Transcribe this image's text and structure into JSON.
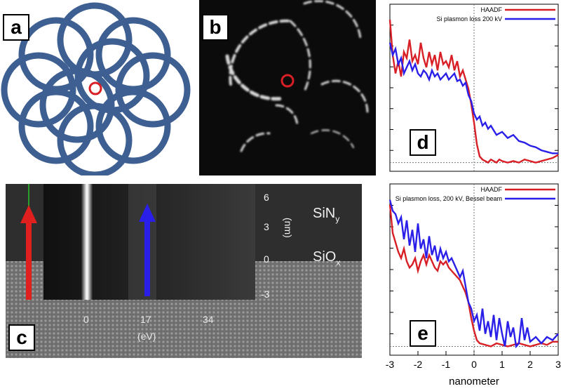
{
  "figure": {
    "panels": [
      {
        "id": "a",
        "label": "a"
      },
      {
        "id": "b",
        "label": "b"
      },
      {
        "id": "c",
        "label": "c"
      },
      {
        "id": "d",
        "label": "d"
      },
      {
        "id": "e",
        "label": "e"
      }
    ],
    "panel_c": {
      "layer_top": "SiN",
      "layer_top_sub": "y",
      "layer_bottom": "SiO",
      "layer_bottom_sub": "x",
      "x_ticks": [
        "0",
        "17",
        "34"
      ],
      "x_unit": "(eV)",
      "y_ticks": [
        "6",
        "3",
        "0",
        "-3"
      ],
      "y_unit": "(nm)",
      "arrow_colors": {
        "red": "#e0201f",
        "blue": "#2a1fe8"
      }
    },
    "colors": {
      "ring_blue": "#3e5f91",
      "marker_red": "#d81f26"
    }
  },
  "chart_data": [
    {
      "type": "line",
      "panel": "d",
      "xlim": [
        -3,
        3
      ],
      "grid": false,
      "legend_position": "top-right",
      "series": [
        {
          "name": "HAADF",
          "color": "#d81f26",
          "x": [
            -3,
            -2.9,
            -2.8,
            -2.7,
            -2.6,
            -2.5,
            -2.4,
            -2.3,
            -2.2,
            -2.1,
            -2.0,
            -1.9,
            -1.8,
            -1.7,
            -1.6,
            -1.5,
            -1.4,
            -1.3,
            -1.2,
            -1.1,
            -1.0,
            -0.9,
            -0.8,
            -0.7,
            -0.6,
            -0.5,
            -0.4,
            -0.3,
            -0.2,
            -0.1,
            0,
            0.1,
            0.2,
            0.3,
            0.4,
            0.5,
            0.6,
            0.7,
            0.8,
            0.9,
            1.0,
            1.2,
            1.4,
            1.6,
            1.8,
            2.0,
            2.2,
            2.4,
            2.6,
            2.8,
            3.0
          ],
          "y": [
            0.95,
            0.72,
            0.6,
            0.68,
            0.58,
            0.74,
            0.7,
            0.82,
            0.68,
            0.72,
            0.66,
            0.8,
            0.7,
            0.64,
            0.74,
            0.66,
            0.72,
            0.62,
            0.74,
            0.66,
            0.68,
            0.64,
            0.72,
            0.62,
            0.68,
            0.58,
            0.62,
            0.56,
            0.5,
            0.4,
            0.28,
            0.14,
            0.06,
            0.04,
            0.03,
            0.02,
            0.04,
            0.03,
            0.02,
            0.04,
            0.03,
            0.02,
            0.03,
            0.02,
            0.04,
            0.03,
            0.02,
            0.03,
            0.04,
            0.05,
            0.07
          ]
        },
        {
          "name": "Si plasmon loss 200 kV",
          "color": "#2a1fe8",
          "x": [
            -3,
            -2.9,
            -2.8,
            -2.7,
            -2.6,
            -2.5,
            -2.4,
            -2.3,
            -2.2,
            -2.1,
            -2.0,
            -1.9,
            -1.8,
            -1.7,
            -1.6,
            -1.5,
            -1.4,
            -1.3,
            -1.2,
            -1.1,
            -1.0,
            -0.9,
            -0.8,
            -0.7,
            -0.6,
            -0.5,
            -0.4,
            -0.3,
            -0.2,
            -0.1,
            0,
            0.1,
            0.2,
            0.3,
            0.4,
            0.5,
            0.6,
            0.8,
            1.0,
            1.2,
            1.4,
            1.6,
            1.8,
            2.0,
            2.2,
            2.4,
            2.6,
            2.8,
            3.0
          ],
          "y": [
            0.8,
            0.72,
            0.76,
            0.66,
            0.7,
            0.6,
            0.64,
            0.68,
            0.62,
            0.66,
            0.6,
            0.58,
            0.62,
            0.6,
            0.56,
            0.62,
            0.58,
            0.6,
            0.56,
            0.58,
            0.6,
            0.56,
            0.58,
            0.6,
            0.55,
            0.56,
            0.52,
            0.54,
            0.46,
            0.42,
            0.34,
            0.3,
            0.32,
            0.26,
            0.28,
            0.24,
            0.26,
            0.2,
            0.22,
            0.18,
            0.2,
            0.16,
            0.15,
            0.13,
            0.12,
            0.1,
            0.09,
            0.08,
            0.08
          ]
        }
      ]
    },
    {
      "type": "line",
      "panel": "e",
      "xlim": [
        -3,
        3
      ],
      "grid": false,
      "legend_position": "top-right",
      "xlabel": "nanometer",
      "x_ticks": [
        "-3",
        "-2",
        "-1",
        "0",
        "1",
        "2",
        "3"
      ],
      "series": [
        {
          "name": "HAADF",
          "color": "#d81f26",
          "x": [
            -3,
            -2.9,
            -2.8,
            -2.7,
            -2.6,
            -2.5,
            -2.4,
            -2.3,
            -2.2,
            -2.1,
            -2.0,
            -1.9,
            -1.8,
            -1.7,
            -1.6,
            -1.5,
            -1.4,
            -1.3,
            -1.2,
            -1.1,
            -1.0,
            -0.9,
            -0.8,
            -0.7,
            -0.6,
            -0.5,
            -0.4,
            -0.3,
            -0.2,
            -0.1,
            0,
            0.1,
            0.2,
            0.4,
            0.6,
            0.8,
            1.0,
            1.2,
            1.4,
            1.6,
            1.8,
            2.0,
            2.2,
            2.4,
            2.6,
            2.8,
            3.0
          ],
          "y": [
            0.92,
            0.74,
            0.68,
            0.62,
            0.58,
            0.64,
            0.56,
            0.52,
            0.54,
            0.58,
            0.5,
            0.56,
            0.6,
            0.54,
            0.6,
            0.56,
            0.52,
            0.5,
            0.56,
            0.54,
            0.56,
            0.52,
            0.5,
            0.48,
            0.46,
            0.44,
            0.4,
            0.36,
            0.3,
            0.2,
            0.12,
            0.06,
            0.04,
            0.03,
            0.02,
            0.04,
            0.03,
            0.02,
            0.03,
            0.04,
            0.03,
            0.02,
            0.03,
            0.04,
            0.03,
            0.05,
            0.05
          ]
        },
        {
          "name": "Si plasmon loss, 200 kV, Bessel beam",
          "color": "#2a1fe8",
          "x": [
            -3,
            -2.9,
            -2.8,
            -2.7,
            -2.6,
            -2.5,
            -2.4,
            -2.3,
            -2.2,
            -2.1,
            -2.0,
            -1.9,
            -1.8,
            -1.7,
            -1.6,
            -1.5,
            -1.4,
            -1.3,
            -1.2,
            -1.1,
            -1.0,
            -0.9,
            -0.8,
            -0.7,
            -0.6,
            -0.5,
            -0.4,
            -0.3,
            -0.2,
            -0.1,
            0,
            0.1,
            0.2,
            0.3,
            0.4,
            0.5,
            0.6,
            0.7,
            0.8,
            0.9,
            1.0,
            1.1,
            1.2,
            1.3,
            1.4,
            1.5,
            1.6,
            1.7,
            1.8,
            1.9,
            2.0,
            2.2,
            2.4,
            2.6,
            2.8,
            3.0
          ],
          "y": [
            0.95,
            0.88,
            0.86,
            0.8,
            0.84,
            0.7,
            0.82,
            0.66,
            0.76,
            0.62,
            0.8,
            0.64,
            0.7,
            0.58,
            0.72,
            0.6,
            0.66,
            0.56,
            0.64,
            0.58,
            0.62,
            0.56,
            0.58,
            0.54,
            0.5,
            0.46,
            0.5,
            0.4,
            0.3,
            0.26,
            0.18,
            0.22,
            0.12,
            0.26,
            0.1,
            0.18,
            0.08,
            0.22,
            0.06,
            0.2,
            0.1,
            0.02,
            0.18,
            0.08,
            0.14,
            0.02,
            0.04,
            0.2,
            0.06,
            0.14,
            0.05,
            0.08,
            0.04,
            0.08,
            0.06,
            0.1
          ]
        }
      ]
    }
  ]
}
